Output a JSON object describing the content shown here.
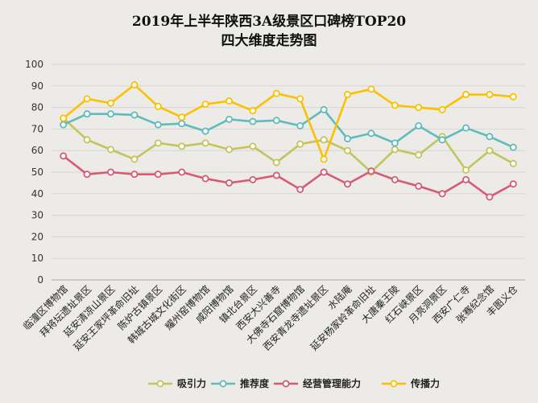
{
  "chart_data": {
    "type": "line",
    "title": "2019年上半年陕西3A级景区口碑榜TOP20",
    "subtitle": "四大维度走势图",
    "ylim": [
      0,
      100
    ],
    "yticks": [
      0,
      10,
      20,
      30,
      40,
      50,
      60,
      70,
      80,
      90,
      100
    ],
    "grid": true,
    "legend_position": "bottom",
    "categories": [
      "临潼区博物馆",
      "拜将坛遗址景区",
      "延安清凉山景区",
      "延安王家坪革命旧址",
      "陈炉古镇景区",
      "韩城古城文化街区",
      "耀州窑博物馆",
      "咸阳博物馆",
      "镇北台景区",
      "西安大兴善寺",
      "大佛寺石窟博物馆",
      "西安青龙寺遗址景区",
      "水陆庵",
      "延安杨家岭革命旧址",
      "大唐秦王陵",
      "红石峡景区",
      "月亮洞景区",
      "西安广仁寺",
      "张骞纪念馆",
      "丰图义仓"
    ],
    "series": [
      {
        "name": "吸引力",
        "color": "#c3c45a",
        "values": [
          75,
          65,
          60.5,
          56,
          63.5,
          62,
          63.5,
          60.5,
          62,
          54.5,
          63,
          65,
          60,
          50,
          60.5,
          58,
          66.5,
          51,
          60,
          54
        ]
      },
      {
        "name": "推荐度",
        "color": "#5ebcba",
        "values": [
          72,
          77,
          77,
          76.5,
          72,
          72.5,
          69,
          74.5,
          73.5,
          74,
          71.5,
          79,
          65.5,
          68,
          63.5,
          71.5,
          65,
          70.5,
          66.5,
          61.5
        ]
      },
      {
        "name": "经营管理能力",
        "color": "#d65a72",
        "values": [
          57.5,
          49,
          50,
          49,
          49,
          50,
          47,
          45,
          46.5,
          48.5,
          42,
          50,
          44.5,
          50.5,
          46.5,
          43.5,
          40,
          46.5,
          38.5,
          44.5
        ]
      },
      {
        "name": "传播力",
        "color": "#fbc100",
        "values": [
          75,
          84,
          82,
          90.5,
          80.5,
          75.5,
          81.5,
          83,
          78.5,
          86.5,
          84,
          56,
          86,
          88.5,
          81,
          80,
          79,
          86,
          86,
          85
        ]
      }
    ]
  }
}
